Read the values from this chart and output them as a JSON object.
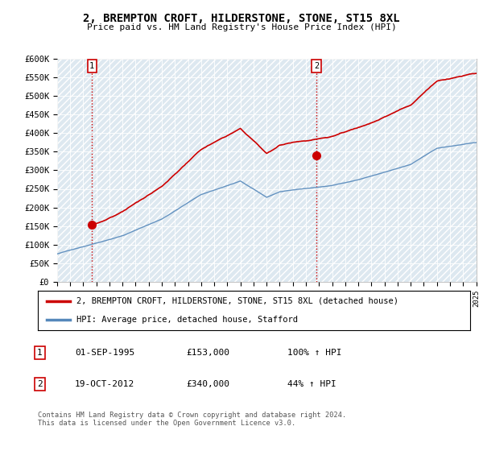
{
  "title": "2, BREMPTON CROFT, HILDERSTONE, STONE, ST15 8XL",
  "subtitle": "Price paid vs. HM Land Registry's House Price Index (HPI)",
  "ylim": [
    0,
    600000
  ],
  "yticks": [
    0,
    50000,
    100000,
    150000,
    200000,
    250000,
    300000,
    350000,
    400000,
    450000,
    500000,
    550000,
    600000
  ],
  "ytick_labels": [
    "£0",
    "£50K",
    "£100K",
    "£150K",
    "£200K",
    "£250K",
    "£300K",
    "£350K",
    "£400K",
    "£450K",
    "£500K",
    "£550K",
    "£600K"
  ],
  "sale1_date": 1995.67,
  "sale1_price": 153000,
  "sale1_label": "1",
  "sale1_date_str": "01-SEP-1995",
  "sale1_price_str": "£153,000",
  "sale1_hpi_str": "100% ↑ HPI",
  "sale2_date": 2012.8,
  "sale2_price": 340000,
  "sale2_label": "2",
  "sale2_date_str": "19-OCT-2012",
  "sale2_price_str": "£340,000",
  "sale2_hpi_str": "44% ↑ HPI",
  "hpi_line_color": "#5588bb",
  "price_line_color": "#cc0000",
  "sale_marker_color": "#cc0000",
  "marker_box_color": "#cc0000",
  "background_color": "#ffffff",
  "chart_bg_color": "#dde8f0",
  "hatch_color": "#ffffff",
  "grid_color": "#ffffff",
  "legend_label_red": "2, BREMPTON CROFT, HILDERSTONE, STONE, ST15 8XL (detached house)",
  "legend_label_blue": "HPI: Average price, detached house, Stafford",
  "footer": "Contains HM Land Registry data © Crown copyright and database right 2024.\nThis data is licensed under the Open Government Licence v3.0.",
  "xmin": 1993,
  "xmax": 2025
}
